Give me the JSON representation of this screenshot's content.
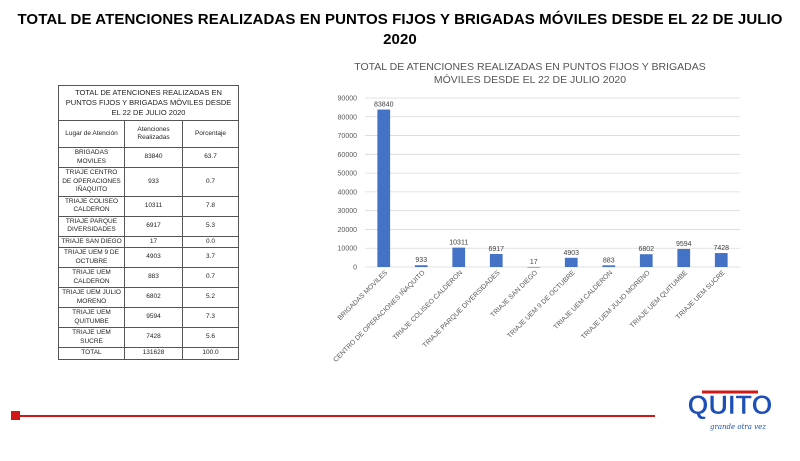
{
  "title": "TOTAL DE ATENCIONES REALIZADAS EN PUNTOS FIJOS Y BRIGADAS MÓVILES DESDE EL 22 DE JULIO 2020",
  "table": {
    "caption": "TOTAL DE ATENCIONES  REALIZADAS EN PUNTOS FIJOS Y BRIGADAS MÓVILES DESDE EL 22 DE JULIO 2020",
    "headers": [
      "Lugar de Atención",
      "Atenciones Realizadas",
      "Porcentaje"
    ],
    "rows": [
      {
        "place": "BRIGADAS MOVILES",
        "count": "83840",
        "pct": "63.7"
      },
      {
        "place": "TRIAJE CENTRO DE OPERACIONES IÑAQUITO",
        "count": "933",
        "pct": "0.7"
      },
      {
        "place": "TRIAJE COLISEO CALDERON",
        "count": "10311",
        "pct": "7.8"
      },
      {
        "place": "TRIAJE PARQUE DIVERSIDADES",
        "count": "6917",
        "pct": "5.3"
      },
      {
        "place": "TRIAJE SAN DIEGO",
        "count": "17",
        "pct": "0.0"
      },
      {
        "place": "TRIAJE UEM 9 DE OCTUBRE",
        "count": "4903",
        "pct": "3.7"
      },
      {
        "place": "TRIAJE UEM CALDERON",
        "count": "883",
        "pct": "0.7"
      },
      {
        "place": "TRIAJE UEM JULIO MORENO",
        "count": "6802",
        "pct": "5.2"
      },
      {
        "place": "TRIAJE UEM QUITUMBE",
        "count": "9594",
        "pct": "7.3"
      },
      {
        "place": "TRIAJE UEM SUCRE",
        "count": "7428",
        "pct": "5.6"
      },
      {
        "place": "TOTAL",
        "count": "131628",
        "pct": "100.0"
      }
    ]
  },
  "chart_data": {
    "type": "bar",
    "title": "TOTAL DE ATENCIONES REALIZADAS EN PUNTOS FIJOS Y BRIGADAS MÓVILES DESDE EL 22 DE JULIO 2020",
    "categories": [
      "BRIGADAS MOVILES",
      "CENTRO DE OPERACIONES IÑAQUITO",
      "TRIAJE COLISEO CALDERON",
      "TRIAJE PARQUE DIVERSIDADES",
      "TRIAJE SAN DIEGO",
      "TRIAJE UEM 9 DE OCTUBRE",
      "TRIAJE UEM CALDERON",
      "TRIAJE UEM JULIO MORENO",
      "TRIAJE UEM QUITUMBE",
      "TRIAJE UEM SUCRE"
    ],
    "values": [
      83840,
      933,
      10311,
      6917,
      17,
      4903,
      883,
      6802,
      9594,
      7428
    ],
    "data_labels": [
      "83840",
      "933",
      "10311",
      "6917",
      "17",
      "4903",
      "883",
      "6802",
      "9594",
      "7428"
    ],
    "yticks": [
      0,
      10000,
      20000,
      30000,
      40000,
      50000,
      60000,
      70000,
      80000,
      90000
    ],
    "ylim": [
      0,
      90000
    ],
    "grid": true,
    "legend": "none",
    "bar_color": "#4472c4"
  },
  "logo": {
    "word": "QUITO",
    "tagline": "grande otra vez"
  },
  "colors": {
    "accent": "#d01818",
    "bar": "#4472c4"
  }
}
